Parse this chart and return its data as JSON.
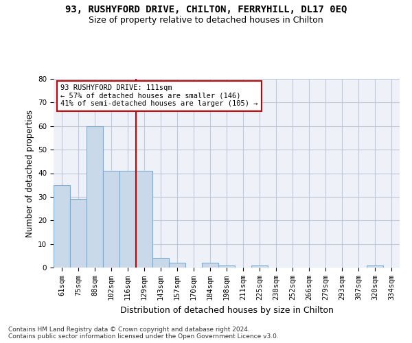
{
  "title": "93, RUSHYFORD DRIVE, CHILTON, FERRYHILL, DL17 0EQ",
  "subtitle": "Size of property relative to detached houses in Chilton",
  "xlabel": "Distribution of detached houses by size in Chilton",
  "ylabel": "Number of detached properties",
  "categories": [
    "61sqm",
    "75sqm",
    "88sqm",
    "102sqm",
    "116sqm",
    "129sqm",
    "143sqm",
    "157sqm",
    "170sqm",
    "184sqm",
    "198sqm",
    "211sqm",
    "225sqm",
    "238sqm",
    "252sqm",
    "266sqm",
    "279sqm",
    "293sqm",
    "307sqm",
    "320sqm",
    "334sqm"
  ],
  "values": [
    35,
    29,
    60,
    41,
    41,
    41,
    4,
    2,
    0,
    2,
    1,
    0,
    1,
    0,
    0,
    0,
    0,
    0,
    0,
    1,
    0
  ],
  "bar_color": "#c9d9ea",
  "bar_edge_color": "#7faacc",
  "grid_color": "#c0c8d8",
  "background_color": "#eef2f8",
  "vline_x": 4.5,
  "vline_color": "#cc0000",
  "annotation_line1": "93 RUSHYFORD DRIVE: 111sqm",
  "annotation_line2": "← 57% of detached houses are smaller (146)",
  "annotation_line3": "41% of semi-detached houses are larger (105) →",
  "annotation_box_color": "#cc0000",
  "annotation_box_facecolor": "white",
  "ylim": [
    0,
    80
  ],
  "yticks": [
    0,
    10,
    20,
    30,
    40,
    50,
    60,
    70,
    80
  ],
  "footer": "Contains HM Land Registry data © Crown copyright and database right 2024.\nContains public sector information licensed under the Open Government Licence v3.0.",
  "title_fontsize": 10,
  "subtitle_fontsize": 9,
  "xlabel_fontsize": 9,
  "ylabel_fontsize": 8.5,
  "tick_fontsize": 7.5,
  "annotation_fontsize": 7.5,
  "footer_fontsize": 6.5
}
